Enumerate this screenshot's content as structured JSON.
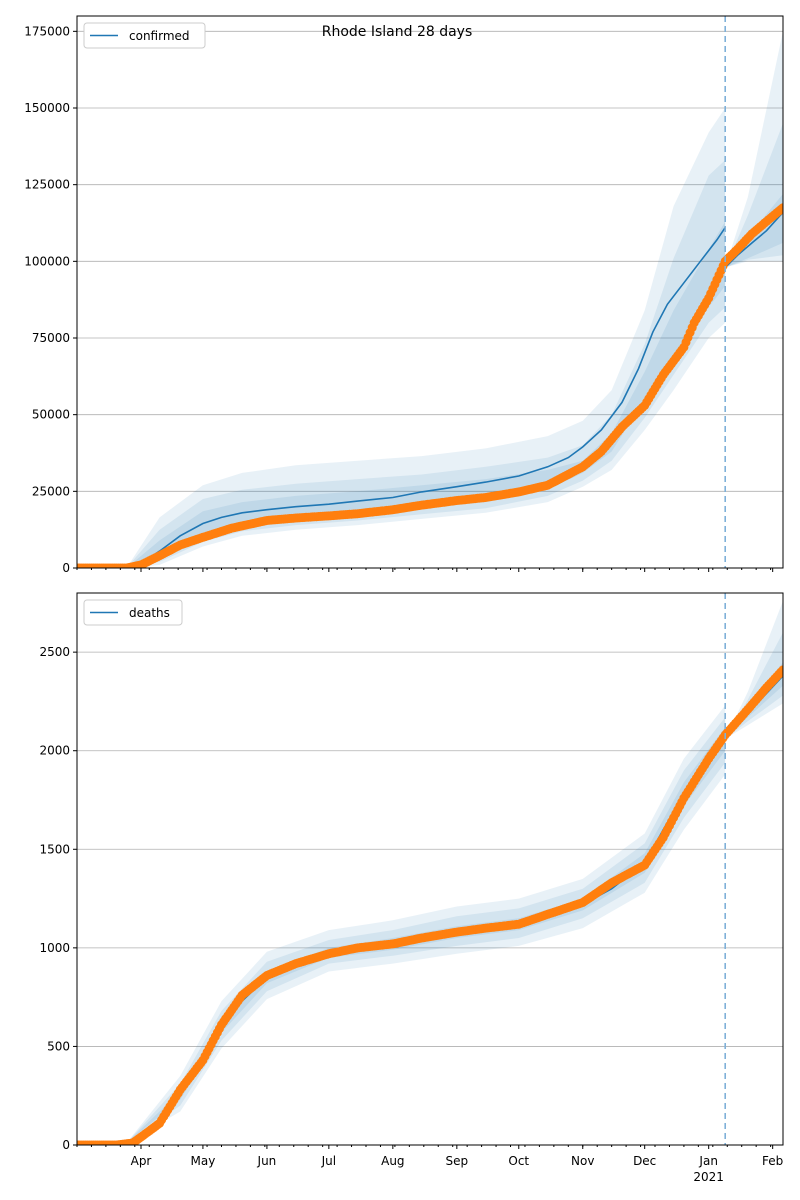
{
  "figure": {
    "title": "Rhode Island 28 days"
  },
  "colors": {
    "model_line": "#1f77b4",
    "band_fill": "#1f77b4",
    "observed_points": "#ff7f0e",
    "grid": "#b0b0b0",
    "vline": "#7fb0d8"
  },
  "x_axis": {
    "start_date": "2020-03-01",
    "end_date": "2021-02-06",
    "forecast_start": "2021-01-09",
    "month_labels": [
      {
        "date": "2020-04-01",
        "label": "Apr"
      },
      {
        "date": "2020-05-01",
        "label": "May"
      },
      {
        "date": "2020-06-01",
        "label": "Jun"
      },
      {
        "date": "2020-07-01",
        "label": "Jul"
      },
      {
        "date": "2020-08-01",
        "label": "Aug"
      },
      {
        "date": "2020-09-01",
        "label": "Sep"
      },
      {
        "date": "2020-10-01",
        "label": "Oct"
      },
      {
        "date": "2020-11-01",
        "label": "Nov"
      },
      {
        "date": "2020-12-01",
        "label": "Dec"
      },
      {
        "date": "2021-01-01",
        "label": "Jan"
      },
      {
        "date": "2021-02-01",
        "label": "Feb"
      }
    ],
    "year_label": {
      "date": "2021-01-01",
      "label": "2021"
    }
  },
  "chart_data": [
    {
      "type": "line",
      "legend": "confirmed",
      "legend_position": "top-left",
      "ylim": [
        0,
        180000
      ],
      "yticks": [
        0,
        25000,
        50000,
        75000,
        100000,
        125000,
        150000,
        175000
      ],
      "grid": "horizontal",
      "model": {
        "x": [
          "2020-03-01",
          "2020-03-25",
          "2020-04-01",
          "2020-04-10",
          "2020-04-20",
          "2020-05-01",
          "2020-05-10",
          "2020-05-20",
          "2020-06-01",
          "2020-06-15",
          "2020-07-01",
          "2020-07-15",
          "2020-08-01",
          "2020-08-15",
          "2020-09-01",
          "2020-09-15",
          "2020-10-01",
          "2020-10-15",
          "2020-10-25",
          "2020-11-01",
          "2020-11-10",
          "2020-11-20",
          "2020-11-28",
          "2020-12-05",
          "2020-12-12",
          "2020-12-20",
          "2020-12-28",
          "2021-01-05",
          "2021-01-09"
        ],
        "y": [
          0,
          0,
          1500,
          5500,
          10500,
          14500,
          16500,
          18000,
          19000,
          20000,
          20800,
          21800,
          23000,
          24800,
          26500,
          28000,
          30000,
          33000,
          36000,
          39500,
          45000,
          54000,
          65000,
          77000,
          86000,
          93000,
          100000,
          107000,
          111000
        ]
      },
      "bands": [
        {
          "x": [
            "2020-03-25",
            "2020-04-10",
            "2020-05-01",
            "2020-05-20",
            "2020-06-15",
            "2020-07-15",
            "2020-08-15",
            "2020-09-15",
            "2020-10-15",
            "2020-11-01",
            "2020-11-15",
            "2020-12-01",
            "2020-12-15",
            "2021-01-01",
            "2021-01-09"
          ],
          "lower": [
            0,
            3500,
            11000,
            14000,
            16000,
            17500,
            19500,
            21500,
            25500,
            31000,
            38000,
            55000,
            68000,
            85000,
            92000
          ],
          "upper": [
            0,
            9000,
            18500,
            21500,
            23500,
            25000,
            27000,
            29000,
            32000,
            35000,
            44000,
            64000,
            84000,
            104000,
            113000
          ]
        },
        {
          "x": [
            "2020-03-25",
            "2020-04-10",
            "2020-05-01",
            "2020-05-20",
            "2020-06-15",
            "2020-07-15",
            "2020-08-15",
            "2020-09-15",
            "2020-10-15",
            "2020-11-01",
            "2020-11-15",
            "2020-12-01",
            "2020-12-15",
            "2021-01-01",
            "2021-01-09"
          ],
          "lower": [
            0,
            2000,
            8500,
            12000,
            14000,
            15500,
            17500,
            19500,
            23500,
            28500,
            35000,
            49000,
            63000,
            80000,
            85000
          ],
          "upper": [
            0,
            12500,
            22500,
            25500,
            27500,
            29000,
            30500,
            33000,
            36000,
            40000,
            50000,
            73000,
            101000,
            128000,
            133000
          ]
        },
        {
          "x": [
            "2020-03-25",
            "2020-04-10",
            "2020-05-01",
            "2020-05-20",
            "2020-06-15",
            "2020-07-15",
            "2020-08-15",
            "2020-09-15",
            "2020-10-15",
            "2020-11-01",
            "2020-11-15",
            "2020-12-01",
            "2020-12-15",
            "2021-01-01",
            "2021-01-09"
          ],
          "lower": [
            0,
            1000,
            7000,
            10500,
            12500,
            14000,
            16000,
            18000,
            21500,
            26500,
            32000,
            45000,
            58000,
            75000,
            80000
          ],
          "upper": [
            0,
            16500,
            27000,
            31000,
            33500,
            35000,
            36500,
            39000,
            43000,
            48000,
            58000,
            84000,
            118000,
            142000,
            150000
          ]
        }
      ],
      "forecast_model": {
        "x": [
          "2021-01-09",
          "2021-01-15",
          "2021-01-22",
          "2021-01-29",
          "2021-02-06"
        ],
        "y": [
          98000,
          102000,
          106000,
          110000,
          116000
        ]
      },
      "forecast_bands": [
        {
          "x": [
            "2021-01-09",
            "2021-01-20",
            "2021-02-06"
          ],
          "lower": [
            98000,
            101000,
            106000
          ],
          "upper": [
            98000,
            108000,
            122000
          ]
        },
        {
          "x": [
            "2021-01-09",
            "2021-01-20",
            "2021-02-06"
          ],
          "lower": [
            98000,
            100500,
            102000
          ],
          "upper": [
            98000,
            115000,
            145000
          ]
        },
        {
          "x": [
            "2021-01-09",
            "2021-01-20",
            "2021-02-06"
          ],
          "lower": [
            98000,
            100000,
            100000
          ],
          "upper": [
            98000,
            121000,
            175000
          ]
        }
      ],
      "observed": {
        "x": [
          "2020-03-01",
          "2020-03-25",
          "2020-04-01",
          "2020-04-10",
          "2020-04-20",
          "2020-05-01",
          "2020-05-15",
          "2020-06-01",
          "2020-06-15",
          "2020-07-01",
          "2020-07-15",
          "2020-08-01",
          "2020-08-15",
          "2020-09-01",
          "2020-09-15",
          "2020-10-01",
          "2020-10-15",
          "2020-11-01",
          "2020-11-10",
          "2020-11-20",
          "2020-12-01",
          "2020-12-10",
          "2020-12-20",
          "2020-12-25",
          "2021-01-01",
          "2021-01-09",
          "2021-01-15",
          "2021-01-22",
          "2021-01-29",
          "2021-02-06"
        ],
        "y": [
          0,
          0,
          1000,
          4000,
          7500,
          10000,
          13000,
          15500,
          16300,
          17000,
          17700,
          19000,
          20500,
          22000,
          23000,
          24800,
          27000,
          33000,
          38000,
          46000,
          53000,
          63000,
          72000,
          80000,
          88000,
          100000,
          104000,
          109000,
          113000,
          117500
        ]
      }
    },
    {
      "type": "line",
      "legend": "deaths",
      "legend_position": "top-left",
      "ylim": [
        0,
        2800
      ],
      "yticks": [
        0,
        500,
        1000,
        1500,
        2000,
        2500
      ],
      "grid": "horizontal",
      "model": {
        "x": [
          "2020-03-01",
          "2020-03-25",
          "2020-04-01",
          "2020-04-10",
          "2020-04-20",
          "2020-05-01",
          "2020-05-10",
          "2020-05-20",
          "2020-06-01",
          "2020-06-15",
          "2020-07-01",
          "2020-07-15",
          "2020-08-01",
          "2020-08-15",
          "2020-09-01",
          "2020-09-15",
          "2020-10-01",
          "2020-10-15",
          "2020-11-01",
          "2020-11-15",
          "2020-12-01",
          "2020-12-10",
          "2020-12-20",
          "2021-01-01",
          "2021-01-09"
        ],
        "y": [
          0,
          10,
          30,
          100,
          250,
          450,
          600,
          730,
          850,
          920,
          975,
          1000,
          1020,
          1045,
          1080,
          1100,
          1120,
          1160,
          1220,
          1300,
          1430,
          1600,
          1780,
          1950,
          2060
        ]
      },
      "bands": [
        {
          "x": [
            "2020-03-25",
            "2020-04-20",
            "2020-05-10",
            "2020-06-01",
            "2020-07-01",
            "2020-08-01",
            "2020-09-01",
            "2020-10-01",
            "2020-11-01",
            "2020-12-01",
            "2020-12-20",
            "2021-01-09"
          ],
          "lower": [
            10,
            230,
            570,
            820,
            950,
            990,
            1050,
            1090,
            1190,
            1380,
            1720,
            2000
          ],
          "upper": [
            10,
            270,
            630,
            880,
            1000,
            1050,
            1110,
            1150,
            1250,
            1480,
            1840,
            2120
          ]
        },
        {
          "x": [
            "2020-03-25",
            "2020-04-20",
            "2020-05-10",
            "2020-06-01",
            "2020-07-01",
            "2020-08-01",
            "2020-09-01",
            "2020-10-01",
            "2020-11-01",
            "2020-12-01",
            "2020-12-20",
            "2021-01-09"
          ],
          "lower": [
            10,
            200,
            530,
            780,
            920,
            960,
            1010,
            1050,
            1150,
            1330,
            1660,
            1940
          ],
          "upper": [
            10,
            310,
            680,
            930,
            1040,
            1090,
            1160,
            1200,
            1300,
            1530,
            1900,
            2170
          ]
        },
        {
          "x": [
            "2020-03-25",
            "2020-04-20",
            "2020-05-10",
            "2020-06-01",
            "2020-07-01",
            "2020-08-01",
            "2020-09-01",
            "2020-10-01",
            "2020-11-01",
            "2020-12-01",
            "2020-12-20",
            "2021-01-09"
          ],
          "lower": [
            10,
            170,
            490,
            740,
            880,
            920,
            970,
            1010,
            1100,
            1280,
            1600,
            1880
          ],
          "upper": [
            10,
            350,
            730,
            980,
            1090,
            1140,
            1210,
            1250,
            1350,
            1580,
            1960,
            2230
          ]
        }
      ],
      "forecast_model": {
        "x": [
          "2021-01-09",
          "2021-01-20",
          "2021-02-06"
        ],
        "y": [
          2060,
          2190,
          2380
        ]
      },
      "forecast_bands": [
        {
          "x": [
            "2021-01-09",
            "2021-01-20",
            "2021-02-06"
          ],
          "lower": [
            2060,
            2170,
            2330
          ],
          "upper": [
            2060,
            2220,
            2450
          ]
        },
        {
          "x": [
            "2021-01-09",
            "2021-01-20",
            "2021-02-06"
          ],
          "lower": [
            2060,
            2150,
            2280
          ],
          "upper": [
            2060,
            2260,
            2600
          ]
        },
        {
          "x": [
            "2021-01-09",
            "2021-01-20",
            "2021-02-06"
          ],
          "lower": [
            2060,
            2130,
            2240
          ],
          "upper": [
            2060,
            2300,
            2760
          ]
        }
      ],
      "observed": {
        "x": [
          "2020-03-01",
          "2020-03-20",
          "2020-03-28",
          "2020-04-01",
          "2020-04-10",
          "2020-04-20",
          "2020-05-01",
          "2020-05-10",
          "2020-05-20",
          "2020-06-01",
          "2020-06-15",
          "2020-07-01",
          "2020-07-15",
          "2020-08-01",
          "2020-08-15",
          "2020-09-01",
          "2020-09-15",
          "2020-10-01",
          "2020-10-15",
          "2020-11-01",
          "2020-11-15",
          "2020-12-01",
          "2020-12-10",
          "2020-12-20",
          "2021-01-01",
          "2021-01-09",
          "2021-01-20",
          "2021-01-29",
          "2021-02-06"
        ],
        "y": [
          0,
          0,
          10,
          40,
          110,
          280,
          430,
          610,
          760,
          860,
          920,
          970,
          1000,
          1020,
          1050,
          1080,
          1100,
          1120,
          1170,
          1230,
          1330,
          1420,
          1560,
          1760,
          1960,
          2080,
          2210,
          2320,
          2410
        ]
      }
    }
  ]
}
